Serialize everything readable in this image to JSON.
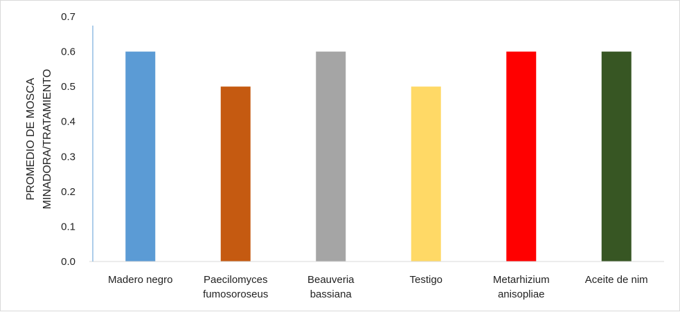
{
  "chart_data": {
    "type": "bar",
    "title": "",
    "xlabel": "",
    "ylabel_lines": [
      "PROMEDIO DE MOSCA",
      "MINADORA/TRATAMIENTO"
    ],
    "ylim": [
      0,
      0.7
    ],
    "yticks": [
      "0.0",
      "0.1",
      "0.2",
      "0.3",
      "0.4",
      "0.5",
      "0.6",
      "0.7"
    ],
    "categories": [
      [
        "Madero negro"
      ],
      [
        "Paecilomyces",
        "fumosoroseus"
      ],
      [
        "Beauveria",
        "bassiana"
      ],
      [
        "Testigo"
      ],
      [
        "Metarhizium",
        "anisopliae"
      ],
      [
        "Aceite de nim"
      ]
    ],
    "values": [
      0.6,
      0.5,
      0.6,
      0.5,
      0.6,
      0.6
    ],
    "colors": [
      "#5b9bd5",
      "#c55a11",
      "#a5a5a5",
      "#ffd966",
      "#ff0000",
      "#375623"
    ],
    "grid": false,
    "legend": "none"
  }
}
